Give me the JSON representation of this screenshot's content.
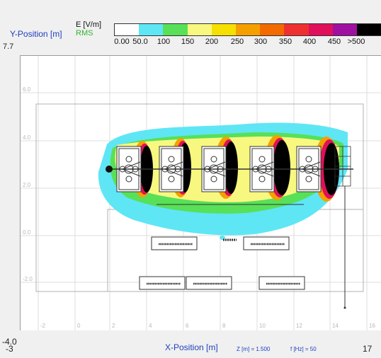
{
  "legend": {
    "y_axis_title": "Y-Position [m]",
    "y_axis_max": "7.7",
    "quantity": "E [V/m]",
    "quantity_mode": "RMS",
    "scale_labels": [
      "0.00",
      "50.0",
      "100",
      "150",
      "200",
      "250",
      "300",
      "350",
      "400",
      "450",
      ">500"
    ],
    "scale_colors": [
      "#ffffff",
      "#5ee6f5",
      "#58e058",
      "#f8f880",
      "#f5e000",
      "#f5a000",
      "#f26a00",
      "#ee3030",
      "#e0105a",
      "#a010a0",
      "#000000"
    ]
  },
  "grid": {
    "y_tick_labels": [
      "6.0",
      "4.0",
      "2.0",
      "0.0",
      "-2.0"
    ],
    "x_tick_labels": [
      "-2",
      "0",
      "2",
      "4",
      "6",
      "8",
      "10",
      "12",
      "14",
      "16"
    ]
  },
  "footer": {
    "x_axis_title": "X-Position [m]",
    "z_readout": "Z [m] = 1.500",
    "f_readout": "f [Hz] = 50",
    "y_axis_min": "-4.0",
    "x_axis_min": "-3",
    "x_axis_max": "17"
  },
  "colors": {
    "field_low": "#5ee6f5",
    "field_green": "#58e058",
    "field_yellow": "#f8f880",
    "field_orange": "#f5a000",
    "field_red": "#ee3030",
    "field_magenta": "#e0105a",
    "field_high": "#000000",
    "axis_text": "#1f3fbf"
  }
}
